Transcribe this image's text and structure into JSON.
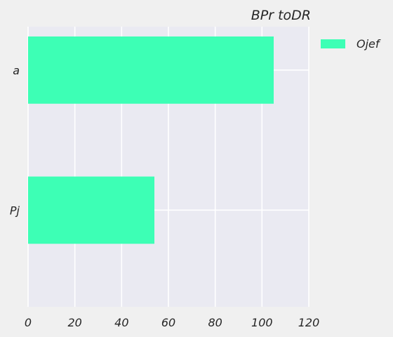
{
  "chart_data": {
    "type": "bar",
    "orientation": "horizontal",
    "title": "BPr toDR",
    "xlabel": "",
    "ylabel": "",
    "categories": [
      "a",
      "Pj"
    ],
    "series": [
      {
        "name": "Ojef",
        "values": [
          105,
          54
        ],
        "color": "#3dffb5"
      }
    ],
    "xlim": [
      0,
      120
    ],
    "xticks": [
      0,
      20,
      40,
      60,
      80,
      100,
      120
    ],
    "grid": true,
    "legend": "outside-top-right",
    "colors": {
      "background": "#f0f0f0",
      "plot_background": "#eaeaf2",
      "grid": "#ffffff",
      "bar": "#3dffb5"
    }
  }
}
